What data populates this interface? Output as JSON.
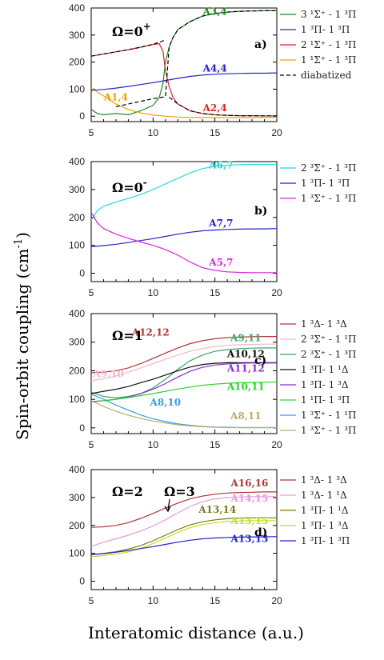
{
  "chart_data": [
    {
      "type": "line",
      "panel": "a)",
      "omega_label": "Ω=0",
      "omega_sup": "+",
      "xlim": [
        5,
        20
      ],
      "ylim": [
        -20,
        400
      ],
      "xticks": [
        5,
        10,
        15,
        20
      ],
      "yticks": [
        0,
        100,
        200,
        300,
        400
      ],
      "series": [
        {
          "name": "3 ¹Σ⁺ - 1 ³Π",
          "color": "#1f8a1f",
          "dash": false,
          "x": [
            5,
            5.5,
            6,
            7,
            8,
            9,
            10,
            10.5,
            10.8,
            11,
            11.3,
            11.6,
            12,
            13,
            14,
            15,
            16,
            17,
            18,
            19,
            20
          ],
          "y": [
            25,
            10,
            5,
            10,
            5,
            20,
            40,
            70,
            120,
            200,
            255,
            290,
            320,
            350,
            370,
            380,
            385,
            388,
            389,
            390,
            390
          ]
        },
        {
          "name": "1 ³Π- 1 ³Π",
          "color": "#2222cc",
          "dash": false,
          "x": [
            5,
            6,
            7,
            8,
            9,
            10,
            11,
            12,
            13,
            14,
            15,
            16,
            17,
            18,
            19,
            20
          ],
          "y": [
            95,
            99,
            104,
            110,
            117,
            124,
            132,
            140,
            147,
            152,
            155,
            157,
            158,
            159,
            159,
            160
          ]
        },
        {
          "name": "2 ¹Σ⁺ - 1 ³Π",
          "color": "#dd2222",
          "dash": false,
          "x": [
            5,
            6,
            7,
            8,
            9,
            10,
            10.5,
            10.8,
            11,
            11.3,
            11.6,
            12,
            13,
            14,
            15,
            16,
            17,
            18,
            19,
            20
          ],
          "y": [
            222,
            230,
            238,
            246,
            255,
            265,
            268,
            240,
            170,
            110,
            70,
            45,
            20,
            10,
            5,
            3,
            2,
            2,
            1,
            1
          ]
        },
        {
          "name": "1 ¹Σ⁺ - 1 ³Π",
          "color": "#f0a000",
          "dash": false,
          "x": [
            5,
            6,
            7,
            8,
            9,
            10,
            11,
            12,
            13,
            14,
            15,
            16,
            17,
            18,
            19,
            20
          ],
          "y": [
            103,
            75,
            45,
            25,
            12,
            4,
            0,
            -3,
            -5,
            -5,
            -5,
            -5,
            -5,
            -5,
            -5,
            -5
          ]
        },
        {
          "name": "diabatized",
          "color": "#000000",
          "dash": true,
          "x": [
            7,
            8,
            9,
            10,
            11,
            11.3,
            11.6,
            12,
            13,
            14,
            15,
            16,
            17,
            18,
            19,
            20
          ],
          "y": [
            35,
            45,
            55,
            65,
            72,
            255,
            290,
            320,
            350,
            370,
            380,
            385,
            388,
            389,
            390,
            390
          ]
        },
        {
          "name": "",
          "color": "#000000",
          "dash": true,
          "x": [
            5,
            6,
            7,
            8,
            9,
            10,
            10.6,
            11
          ],
          "y": [
            222,
            230,
            238,
            246,
            255,
            266,
            275,
            282
          ]
        },
        {
          "name": "",
          "color": "#000000",
          "dash": true,
          "x": [
            11.3,
            11.6,
            12,
            13,
            14,
            15,
            16,
            17,
            18,
            19,
            20
          ],
          "y": [
            70,
            60,
            45,
            20,
            10,
            5,
            3,
            2,
            2,
            1,
            1
          ]
        }
      ],
      "annotations": [
        {
          "text": "A3,4",
          "color": "#1f8a1f",
          "x": 15,
          "y": 375
        },
        {
          "text": "A4,4",
          "color": "#2222cc",
          "x": 15,
          "y": 165
        },
        {
          "text": "A2,4",
          "color": "#dd2222",
          "x": 15,
          "y": 18
        },
        {
          "text": "A1,4",
          "color": "#f0a000",
          "x": 7,
          "y": 58
        }
      ]
    },
    {
      "type": "line",
      "panel": "b)",
      "omega_label": "Ω=0",
      "omega_sup": "-",
      "xlim": [
        5,
        20
      ],
      "ylim": [
        -30,
        400
      ],
      "xticks": [
        5,
        10,
        15,
        20
      ],
      "yticks": [
        0,
        100,
        200,
        300,
        400
      ],
      "series": [
        {
          "name": "2 ³Σ⁺ - 1 ³Π",
          "color": "#22dddd",
          "dash": false,
          "x": [
            5,
            5.5,
            6,
            7,
            8,
            9,
            10,
            11,
            12,
            13,
            14,
            15,
            16,
            17,
            18,
            19,
            20
          ],
          "y": [
            190,
            225,
            240,
            255,
            268,
            282,
            300,
            320,
            340,
            360,
            375,
            383,
            387,
            389,
            390,
            390,
            390
          ]
        },
        {
          "name": "1 ³Π- 1 ³Π",
          "color": "#2222cc",
          "dash": false,
          "x": [
            5,
            6,
            7,
            8,
            9,
            10,
            11,
            12,
            13,
            14,
            15,
            16,
            17,
            18,
            19,
            20
          ],
          "y": [
            95,
            99,
            104,
            110,
            117,
            124,
            132,
            140,
            147,
            152,
            155,
            157,
            158,
            159,
            159,
            160
          ]
        },
        {
          "name": "1 ³Σ⁺ - 1 ³Π",
          "color": "#dd22dd",
          "dash": false,
          "x": [
            5,
            5.5,
            6,
            7,
            8,
            9,
            10,
            11,
            12,
            13,
            14,
            15,
            16,
            17,
            18,
            19,
            20
          ],
          "y": [
            218,
            180,
            160,
            140,
            125,
            112,
            100,
            85,
            65,
            40,
            20,
            10,
            5,
            3,
            2,
            2,
            2
          ]
        }
      ],
      "annotations": [
        {
          "text": "A6,7",
          "color": "#22cccc",
          "x": 15.5,
          "y": 375
        },
        {
          "text": "A7,7",
          "color": "#2222cc",
          "x": 15.5,
          "y": 168
        },
        {
          "text": "A5,7",
          "color": "#dd22dd",
          "x": 15.5,
          "y": 28
        }
      ]
    },
    {
      "type": "line",
      "panel": "c)",
      "omega_label": "Ω=1",
      "omega_sup": "",
      "xlim": [
        5,
        20
      ],
      "ylim": [
        -20,
        400
      ],
      "xticks": [
        5,
        10,
        15,
        20
      ],
      "yticks": [
        0,
        100,
        200,
        300,
        400
      ],
      "series": [
        {
          "name": "1 ³Δ- 1 ³Δ",
          "color": "#b03535",
          "dash": false,
          "x": [
            5,
            6,
            7,
            8,
            9,
            10,
            11,
            12,
            13,
            14,
            15,
            16,
            17,
            18,
            19,
            20
          ],
          "y": [
            193,
            195,
            200,
            210,
            225,
            243,
            262,
            280,
            295,
            305,
            312,
            316,
            318,
            319,
            320,
            320
          ]
        },
        {
          "name": "2 ³Σ⁺ - 1 ¹Π",
          "color": "#f0b8d0",
          "dash": false,
          "x": [
            5,
            6,
            7,
            8,
            9,
            10,
            11,
            12,
            13,
            14,
            15,
            16,
            17,
            18,
            19,
            20
          ],
          "y": [
            165,
            172,
            182,
            195,
            210,
            225,
            240,
            255,
            268,
            278,
            285,
            289,
            291,
            292,
            293,
            293
          ]
        },
        {
          "name": "2 ³Σ⁺ - 1 ³Π",
          "color": "#3aa86a",
          "dash": false,
          "x": [
            5,
            6,
            7,
            8,
            9,
            10,
            11,
            12,
            13,
            14,
            15,
            16,
            17,
            18,
            19,
            20
          ],
          "y": [
            125,
            110,
            105,
            110,
            120,
            140,
            170,
            205,
            235,
            255,
            268,
            274,
            277,
            279,
            280,
            280
          ]
        },
        {
          "name": "1 ³Π- 1 ¹Δ",
          "color": "#111111",
          "dash": false,
          "x": [
            5,
            6,
            7,
            8,
            9,
            10,
            11,
            12,
            13,
            14,
            15,
            16,
            17,
            18,
            19,
            20
          ],
          "y": [
            120,
            128,
            135,
            145,
            158,
            170,
            185,
            200,
            213,
            222,
            226,
            228,
            228,
            228,
            228,
            228
          ]
        },
        {
          "name": "1 ³Π- 1 ³Δ",
          "color": "#8a2bd8",
          "dash": false,
          "x": [
            5,
            6,
            7,
            8,
            9,
            10,
            11,
            12,
            13,
            14,
            15,
            16,
            17,
            18,
            19,
            20
          ],
          "y": [
            92,
            95,
            100,
            108,
            120,
            135,
            155,
            178,
            198,
            212,
            220,
            224,
            226,
            227,
            227,
            227
          ]
        },
        {
          "name": "1 ¹Π- 1 ³Π",
          "color": "#2ad42a",
          "dash": false,
          "x": [
            5,
            6,
            7,
            8,
            9,
            10,
            11,
            12,
            13,
            14,
            15,
            16,
            17,
            18,
            19,
            20
          ],
          "y": [
            90,
            95,
            100,
            106,
            113,
            120,
            128,
            136,
            143,
            149,
            153,
            156,
            158,
            159,
            160,
            160
          ]
        },
        {
          "name": "1 ³Σ⁺ - 1 ¹Π",
          "color": "#3a9ae0",
          "dash": false,
          "x": [
            5,
            6,
            7,
            8,
            9,
            10,
            11,
            12,
            13,
            14,
            15,
            16,
            17,
            18,
            19,
            20
          ],
          "y": [
            118,
            100,
            80,
            62,
            45,
            32,
            22,
            14,
            9,
            5,
            3,
            2,
            1,
            1,
            1,
            1
          ]
        },
        {
          "name": "1 ³Σ⁺ - 1 ³Π",
          "color": "#b8ad6a",
          "dash": false,
          "x": [
            5,
            6,
            7,
            8,
            9,
            10,
            11,
            12,
            13,
            14,
            15,
            16,
            17,
            18,
            19,
            20
          ],
          "y": [
            95,
            75,
            58,
            44,
            33,
            24,
            17,
            11,
            7,
            4,
            2,
            1,
            1,
            1,
            1,
            1
          ]
        }
      ],
      "annotations": [
        {
          "text": "A12,12",
          "color": "#b03535",
          "x": 9.8,
          "y": 323
        },
        {
          "text": "A9,11",
          "color": "#3aa86a",
          "x": 17.5,
          "y": 303
        },
        {
          "text": "A10,12",
          "color": "#111111",
          "x": 17.5,
          "y": 248
        },
        {
          "text": "A11,12",
          "color": "#8a2bd8",
          "x": 17.5,
          "y": 197
        },
        {
          "text": "A9,10",
          "color": "#f0b8d0",
          "x": 6.4,
          "y": 178
        },
        {
          "text": "A10,11",
          "color": "#2ad42a",
          "x": 17.5,
          "y": 132
        },
        {
          "text": "A8,10",
          "color": "#3a9ae0",
          "x": 11.0,
          "y": 78
        },
        {
          "text": "A8,11",
          "color": "#b8ad6a",
          "x": 17.5,
          "y": 30
        }
      ]
    },
    {
      "type": "line",
      "panel": "d)",
      "omega_label": "Ω=2",
      "omega_sup": "",
      "omega2_label": "Ω=3",
      "xlim": [
        5,
        20
      ],
      "ylim": [
        -30,
        400
      ],
      "xticks": [
        5,
        10,
        15,
        20
      ],
      "yticks": [
        0,
        100,
        200,
        300,
        400
      ],
      "series": [
        {
          "name": "1 ³Δ- 1 ³Δ",
          "color": "#b03535",
          "dash": false,
          "x": [
            5,
            6,
            7,
            8,
            9,
            10,
            11,
            12,
            13,
            14,
            15,
            16,
            17,
            18,
            19,
            20
          ],
          "y": [
            193,
            195,
            200,
            210,
            225,
            243,
            262,
            280,
            295,
            305,
            312,
            316,
            318,
            319,
            320,
            320
          ]
        },
        {
          "name": "1 ³Δ- 1 ¹Δ",
          "color": "#e89ad8",
          "dash": false,
          "x": [
            5,
            6,
            7,
            8,
            9,
            10,
            11,
            12,
            13,
            14,
            15,
            16,
            17,
            18,
            19,
            20
          ],
          "y": [
            125,
            140,
            152,
            165,
            180,
            198,
            220,
            245,
            268,
            285,
            295,
            300,
            302,
            303,
            303,
            303
          ]
        },
        {
          "name": "1 ³Π- 1 ¹Δ",
          "color": "#7a7a1a",
          "dash": false,
          "x": [
            5,
            6,
            7,
            8,
            9,
            10,
            11,
            12,
            13,
            14,
            15,
            16,
            17,
            18,
            19,
            20
          ],
          "y": [
            95,
            100,
            106,
            115,
            128,
            145,
            165,
            185,
            202,
            213,
            220,
            224,
            226,
            227,
            227,
            227
          ]
        },
        {
          "name": "1 ³Π- 1 ³Δ",
          "color": "#c0e020",
          "dash": false,
          "x": [
            5,
            6,
            7,
            8,
            9,
            10,
            11,
            12,
            13,
            14,
            15,
            16,
            17,
            18,
            19,
            20
          ],
          "y": [
            88,
            92,
            97,
            105,
            118,
            135,
            155,
            175,
            192,
            203,
            210,
            214,
            216,
            217,
            217,
            217
          ]
        },
        {
          "name": "1 ³Π- 1 ³Π",
          "color": "#2222cc",
          "dash": false,
          "x": [
            5,
            6,
            7,
            8,
            9,
            10,
            11,
            12,
            13,
            14,
            15,
            16,
            17,
            18,
            19,
            20
          ],
          "y": [
            95,
            99,
            104,
            110,
            117,
            124,
            132,
            140,
            147,
            152,
            155,
            157,
            158,
            159,
            159,
            160
          ]
        }
      ],
      "annotations": [
        {
          "text": "A16,16",
          "color": "#b03535",
          "x": 17.8,
          "y": 340
        },
        {
          "text": "A14,15",
          "color": "#e89ad8",
          "x": 17.8,
          "y": 285
        },
        {
          "text": "A13,14",
          "color": "#7a7a1a",
          "x": 15.2,
          "y": 245
        },
        {
          "text": "A13,15",
          "color": "#c0e020",
          "x": 17.8,
          "y": 205
        },
        {
          "text": "A13,13",
          "color": "#2222cc",
          "x": 17.8,
          "y": 140
        }
      ]
    }
  ],
  "ylabel_main": "Spin-orbit coupling (cm",
  "ylabel_sup": "-1",
  "ylabel_close": ")",
  "xlabel": "Interatomic distance (a.u.)"
}
